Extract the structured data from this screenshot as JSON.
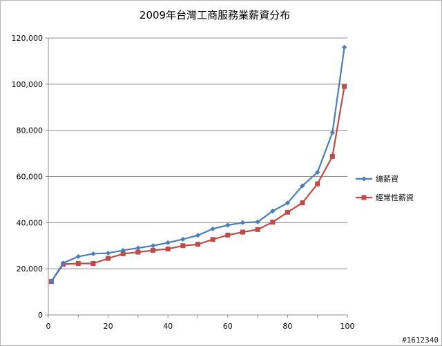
{
  "chart_data": {
    "type": "line",
    "title": "2009年台灣工商服務業薪資分布",
    "xlabel": "",
    "ylabel": "",
    "xlim": [
      0,
      100
    ],
    "ylim": [
      0,
      120000
    ],
    "x_ticks": [
      0,
      20,
      40,
      60,
      80,
      100
    ],
    "x_tick_labels": [
      "0",
      "20",
      "40",
      "60",
      "80",
      "100"
    ],
    "y_ticks": [
      0,
      20000,
      40000,
      60000,
      80000,
      100000,
      120000
    ],
    "y_tick_labels": [
      "0",
      "20,000",
      "40,000",
      "60,000",
      "80,000",
      "100,000",
      "120,000"
    ],
    "grid": "horizontal",
    "legend_position": "right",
    "x": [
      1,
      5,
      10,
      15,
      20,
      25,
      30,
      35,
      40,
      45,
      50,
      55,
      60,
      65,
      70,
      75,
      80,
      85,
      90,
      95,
      99
    ],
    "series": [
      {
        "name": "總薪資",
        "color": "#4a7ebb",
        "marker": "diamond",
        "values": [
          14500,
          22500,
          25300,
          26500,
          26800,
          28000,
          29000,
          30000,
          31300,
          32800,
          34500,
          37300,
          38900,
          40000,
          40300,
          45000,
          48500,
          56000,
          61800,
          79000,
          116000
        ]
      },
      {
        "name": "經常性薪資",
        "color": "#be4b48",
        "marker": "square",
        "values": [
          14500,
          22000,
          22300,
          22300,
          24500,
          26500,
          27200,
          28000,
          28600,
          30000,
          30600,
          32700,
          34600,
          35900,
          37000,
          40200,
          44500,
          48600,
          56800,
          68700,
          99000
        ]
      }
    ]
  },
  "watermark": "#1612340"
}
